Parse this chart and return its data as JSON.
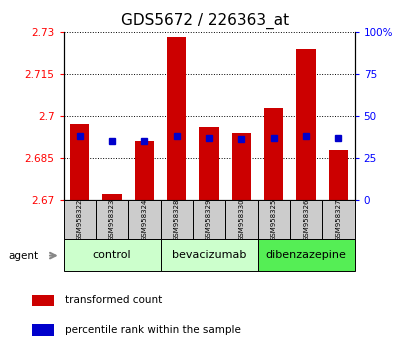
{
  "title": "GDS5672 / 226363_at",
  "samples": [
    "GSM958322",
    "GSM958323",
    "GSM958324",
    "GSM958328",
    "GSM958329",
    "GSM958330",
    "GSM958325",
    "GSM958326",
    "GSM958327"
  ],
  "red_values": [
    2.697,
    2.672,
    2.691,
    2.728,
    2.696,
    2.694,
    2.703,
    2.724,
    2.688
  ],
  "blue_values": [
    38,
    35,
    35,
    38,
    37,
    36,
    37,
    38,
    37
  ],
  "ylim_left": [
    2.67,
    2.73
  ],
  "ylim_right": [
    0,
    100
  ],
  "yticks_left": [
    2.67,
    2.685,
    2.7,
    2.715,
    2.73
  ],
  "ytick_labels_left": [
    "2.67",
    "2.685",
    "2.7",
    "2.715",
    "2.73"
  ],
  "yticks_right": [
    0,
    25,
    50,
    75,
    100
  ],
  "ytick_labels_right": [
    "0",
    "25",
    "50",
    "75",
    "100%"
  ],
  "groups": [
    {
      "label": "control",
      "indices": [
        0,
        1,
        2
      ],
      "color": "#ccffcc"
    },
    {
      "label": "bevacizumab",
      "indices": [
        3,
        4,
        5
      ],
      "color": "#ccffcc"
    },
    {
      "label": "dibenzazepine",
      "indices": [
        6,
        7,
        8
      ],
      "color": "#55ee55"
    }
  ],
  "bar_color": "#cc0000",
  "blue_color": "#0000cc",
  "bar_width": 0.6,
  "blue_marker_size": 4,
  "background_color": "#ffffff",
  "sample_box_color": "#cccccc",
  "agent_label": "agent",
  "legend_items": [
    "transformed count",
    "percentile rank within the sample"
  ],
  "title_fontsize": 11,
  "tick_fontsize": 7.5,
  "sample_fontsize": 5.0,
  "group_fontsize": 8,
  "legend_fontsize": 7.5
}
